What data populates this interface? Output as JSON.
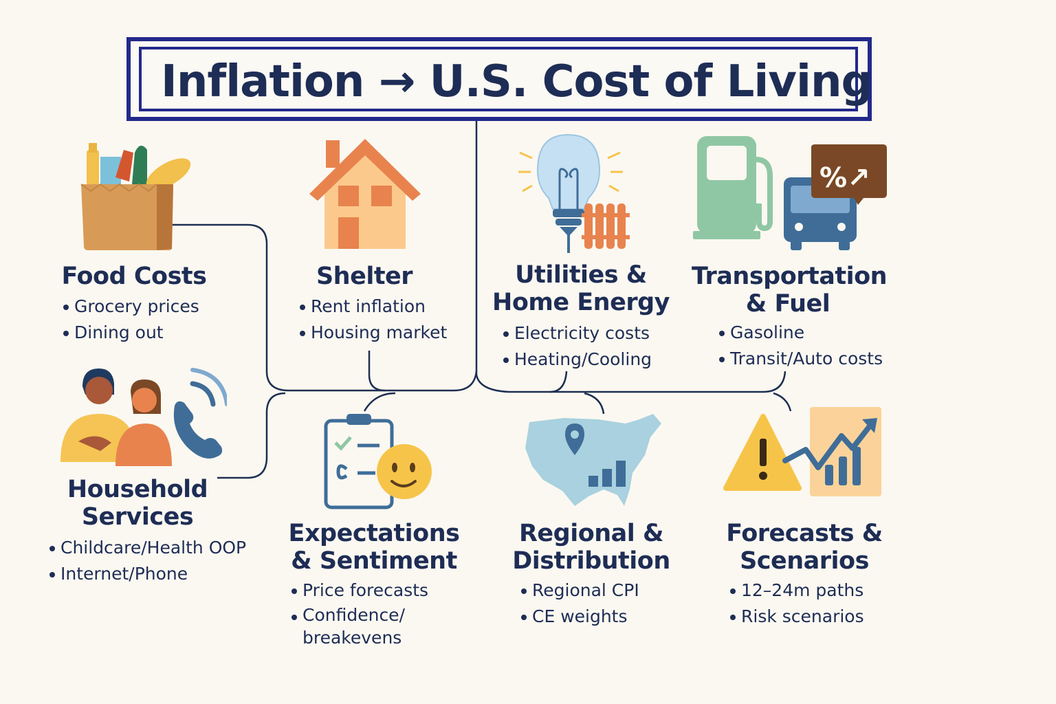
{
  "title": "Inflation → U.S. Cost of Living",
  "categories": [
    {
      "id": "food",
      "heading": "Food Costs",
      "bullets": [
        "Grocery prices",
        "Dining out"
      ],
      "icon": "grocery-bag-icon"
    },
    {
      "id": "shelter",
      "heading": "Shelter",
      "bullets": [
        "Rent inflation",
        "Housing market"
      ],
      "icon": "house-icon"
    },
    {
      "id": "utilities",
      "heading_line1": "Utilities &",
      "heading_line2": "Home Energy",
      "bullets": [
        "Electricity costs",
        "Heating/Cooling"
      ],
      "icon": "lightbulb-radiator-icon"
    },
    {
      "id": "transport",
      "heading_line1": "Transportation",
      "heading_line2": "& Fuel",
      "bullets": [
        "Gasoline",
        "Transit/Auto costs"
      ],
      "icon": "fuel-pump-bus-icon",
      "badge": "%↗"
    },
    {
      "id": "household",
      "heading_line1": "Household",
      "heading_line2": "Services",
      "bullets": [
        "Childcare/Health OOP",
        "Internet/Phone"
      ],
      "icon": "people-phone-icon"
    },
    {
      "id": "expectations",
      "heading_line1": "Expectations",
      "heading_line2": "& Sentiment",
      "bullets": [
        "Price forecasts",
        "Confidence/ breakevens"
      ],
      "icon": "checklist-smiley-icon"
    },
    {
      "id": "regional",
      "heading_line1": "Regional &",
      "heading_line2": "Distribution",
      "bullets": [
        "Regional CPI",
        "CE weights"
      ],
      "icon": "us-map-icon"
    },
    {
      "id": "forecasts",
      "heading_line1": "Forecasts &",
      "heading_line2": "Scenarios",
      "bullets": [
        "12–24m paths",
        "Risk scenarios"
      ],
      "icon": "warning-chart-icon"
    }
  ],
  "colors": {
    "navy": "#22298a",
    "text": "#1e2d55",
    "orange": "#e8834e",
    "tan": "#d69a58",
    "blue": "#3f6d98",
    "green": "#8fc7a4",
    "brown": "#7a4826",
    "yellow": "#f7c44a"
  }
}
